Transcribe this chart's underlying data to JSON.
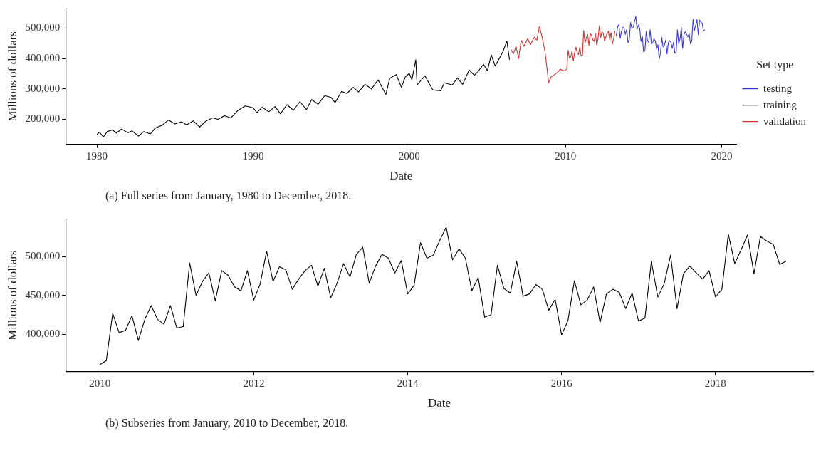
{
  "chart_data": [
    {
      "type": "line",
      "xlabel": "Date",
      "ylabel": "Millions of dollars",
      "legend_title": "Set type",
      "legend": "right",
      "grid": false,
      "marker": "none",
      "line_style": "solid",
      "xlim": [
        "1978-01-01",
        "2020-12-15"
      ],
      "xticks": [
        "1980",
        "1990",
        "2000",
        "2010",
        "2020"
      ],
      "ylim": [
        118000,
        564000
      ],
      "yticks": [
        {
          "value": 200000,
          "label": "200,000"
        },
        {
          "value": 300000,
          "label": "300,000"
        },
        {
          "value": 400000,
          "label": "400,000"
        },
        {
          "value": 500000,
          "label": "500,000"
        }
      ],
      "annotations": [
        "(a) Full series from January, 1980 to December, 2018."
      ],
      "series": [
        {
          "name": "testing",
          "color": "#3a3ad6",
          "x": [
            "2013-04",
            "2013-05",
            "2013-06",
            "2013-07",
            "2013-08",
            "2013-09",
            "2013-10",
            "2013-11",
            "2013-12",
            "2014-01",
            "2014-02",
            "2014-03",
            "2014-04",
            "2014-05",
            "2014-06",
            "2014-07",
            "2014-08",
            "2014-09",
            "2014-10",
            "2014-11",
            "2014-12",
            "2015-01",
            "2015-02",
            "2015-03",
            "2015-04",
            "2015-05",
            "2015-06",
            "2015-07",
            "2015-08",
            "2015-09",
            "2015-10",
            "2015-11",
            "2015-12",
            "2016-01",
            "2016-02",
            "2016-03",
            "2016-04",
            "2016-05",
            "2016-06",
            "2016-07",
            "2016-08",
            "2016-09",
            "2016-10",
            "2016-11",
            "2016-12",
            "2017-01",
            "2017-02",
            "2017-03",
            "2017-04",
            "2017-05",
            "2017-06",
            "2017-07",
            "2017-08",
            "2017-09",
            "2017-10",
            "2017-11",
            "2017-12",
            "2018-01",
            "2018-02",
            "2018-03",
            "2018-04",
            "2018-05",
            "2018-06",
            "2018-07",
            "2018-08",
            "2018-09",
            "2018-10",
            "2018-11",
            "2018-12"
          ],
          "values": [
            474000,
            503000,
            512000,
            466000,
            488000,
            503000,
            498000,
            479000,
            495000,
            452000,
            463000,
            518000,
            498000,
            502000,
            521000,
            538000,
            496000,
            510000,
            498000,
            456000,
            473000,
            422000,
            425000,
            489000,
            459000,
            453000,
            494000,
            449000,
            452000,
            464000,
            458000,
            431000,
            445000,
            399000,
            418000,
            469000,
            438000,
            444000,
            461000,
            415000,
            452000,
            458000,
            454000,
            433000,
            453000,
            417000,
            421000,
            494000,
            448000,
            465000,
            502000,
            433000,
            478000,
            488000,
            479000,
            471000,
            482000,
            448000,
            458000,
            529000,
            491000,
            509000,
            528000,
            478000,
            526000,
            520000,
            516000,
            490000,
            494000
          ]
        },
        {
          "name": "training",
          "color": "#000000",
          "x": [
            "1980-01",
            "1980-03",
            "1980-06",
            "1980-09",
            "1981-01",
            "1981-04",
            "1981-08",
            "1982-01",
            "1982-04",
            "1982-09",
            "1983-01",
            "1983-06",
            "1983-10",
            "1984-03",
            "1984-08",
            "1985-01",
            "1985-06",
            "1985-10",
            "1986-03",
            "1986-08",
            "1987-01",
            "1987-06",
            "1987-10",
            "1988-03",
            "1988-08",
            "1989-01",
            "1989-07",
            "1990-01",
            "1990-04",
            "1990-08",
            "1991-01",
            "1991-06",
            "1991-10",
            "1992-03",
            "1992-08",
            "1993-01",
            "1993-06",
            "1993-10",
            "1994-03",
            "1994-08",
            "1995-01",
            "1995-04",
            "1995-09",
            "1996-01",
            "1996-06",
            "1996-10",
            "1997-03",
            "1997-08",
            "1998-01",
            "1998-07",
            "1998-10",
            "1999-03",
            "1999-07",
            "1999-10",
            "2000-01",
            "2000-03",
            "2000-06",
            "2000-07",
            "2001-01",
            "2001-07",
            "2002-01",
            "2002-04",
            "2002-10",
            "2003-02",
            "2003-06",
            "2003-11",
            "2004-03",
            "2004-06",
            "2004-10",
            "2005-01",
            "2005-04",
            "2005-07",
            "2006-01",
            "2006-04",
            "2006-06"
          ],
          "values": [
            150000,
            158000,
            142000,
            160000,
            165000,
            155000,
            168000,
            156000,
            162000,
            145000,
            160000,
            152000,
            172000,
            180000,
            198000,
            185000,
            192000,
            182000,
            195000,
            175000,
            195000,
            205000,
            200000,
            212000,
            205000,
            228000,
            244000,
            238000,
            222000,
            240000,
            225000,
            242000,
            218000,
            248000,
            230000,
            258000,
            232000,
            265000,
            250000,
            278000,
            272000,
            255000,
            292000,
            285000,
            305000,
            290000,
            315000,
            300000,
            330000,
            282000,
            335000,
            347000,
            305000,
            340000,
            351000,
            330000,
            396000,
            313000,
            343000,
            297000,
            294000,
            320000,
            313000,
            336000,
            315000,
            362000,
            345000,
            358000,
            381000,
            360000,
            412000,
            375000,
            423000,
            457000,
            396000
          ]
        },
        {
          "name": "validation",
          "color": "#d73030",
          "x": [
            "2006-07",
            "2006-09",
            "2006-11",
            "2007-01",
            "2007-03",
            "2007-05",
            "2007-08",
            "2007-10",
            "2008-01",
            "2008-03",
            "2008-05",
            "2008-07",
            "2008-09",
            "2008-11",
            "2008-12",
            "2009-02",
            "2009-04",
            "2009-07",
            "2009-09",
            "2009-11",
            "2010-01",
            "2010-02",
            "2010-03",
            "2010-04",
            "2010-05",
            "2010-06",
            "2010-07",
            "2010-08",
            "2010-09",
            "2010-10",
            "2010-11",
            "2010-12",
            "2011-01",
            "2011-02",
            "2011-03",
            "2011-04",
            "2011-05",
            "2011-06",
            "2011-07",
            "2011-08",
            "2011-09",
            "2011-10",
            "2011-11",
            "2011-12",
            "2012-01",
            "2012-02",
            "2012-03",
            "2012-04",
            "2012-05",
            "2012-06",
            "2012-07",
            "2012-08",
            "2012-09",
            "2012-10",
            "2012-11",
            "2012-12",
            "2013-01",
            "2013-02",
            "2013-03"
          ],
          "values": [
            430000,
            415000,
            440000,
            400000,
            460000,
            440000,
            465000,
            445000,
            470000,
            460000,
            505000,
            470000,
            430000,
            360000,
            320000,
            340000,
            345000,
            355000,
            365000,
            360000,
            361000,
            366000,
            427000,
            402000,
            405000,
            424000,
            392000,
            419000,
            437000,
            419000,
            413000,
            437000,
            408000,
            410000,
            492000,
            450000,
            468000,
            479000,
            443000,
            482000,
            476000,
            461000,
            456000,
            482000,
            444000,
            465000,
            507000,
            468000,
            487000,
            483000,
            458000,
            471000,
            482000,
            489000,
            462000,
            485000,
            447000,
            466000,
            491000
          ]
        }
      ]
    },
    {
      "type": "line",
      "xlabel": "Date",
      "ylabel": "Millions of dollars",
      "grid": false,
      "marker": "none",
      "line_style": "solid",
      "xlim": [
        "2009-07-21",
        "2019-04-08"
      ],
      "xticks": [
        "2010",
        "2012",
        "2014",
        "2016",
        "2018"
      ],
      "ylim": [
        352000,
        548000
      ],
      "yticks": [
        {
          "value": 400000,
          "label": "400,000"
        },
        {
          "value": 450000,
          "label": "450,000"
        },
        {
          "value": 500000,
          "label": "500,000"
        }
      ],
      "annotations": [
        "(b) Subseries from January, 2010 to December, 2018."
      ],
      "x": [
        "2010-01",
        "2010-02",
        "2010-03",
        "2010-04",
        "2010-05",
        "2010-06",
        "2010-07",
        "2010-08",
        "2010-09",
        "2010-10",
        "2010-11",
        "2010-12",
        "2011-01",
        "2011-02",
        "2011-03",
        "2011-04",
        "2011-05",
        "2011-06",
        "2011-07",
        "2011-08",
        "2011-09",
        "2011-10",
        "2011-11",
        "2011-12",
        "2012-01",
        "2012-02",
        "2012-03",
        "2012-04",
        "2012-05",
        "2012-06",
        "2012-07",
        "2012-08",
        "2012-09",
        "2012-10",
        "2012-11",
        "2012-12",
        "2013-01",
        "2013-02",
        "2013-03",
        "2013-04",
        "2013-05",
        "2013-06",
        "2013-07",
        "2013-08",
        "2013-09",
        "2013-10",
        "2013-11",
        "2013-12",
        "2014-01",
        "2014-02",
        "2014-03",
        "2014-04",
        "2014-05",
        "2014-06",
        "2014-07",
        "2014-08",
        "2014-09",
        "2014-10",
        "2014-11",
        "2014-12",
        "2015-01",
        "2015-02",
        "2015-03",
        "2015-04",
        "2015-05",
        "2015-06",
        "2015-07",
        "2015-08",
        "2015-09",
        "2015-10",
        "2015-11",
        "2015-12",
        "2016-01",
        "2016-02",
        "2016-03",
        "2016-04",
        "2016-05",
        "2016-06",
        "2016-07",
        "2016-08",
        "2016-09",
        "2016-10",
        "2016-11",
        "2016-12",
        "2017-01",
        "2017-02",
        "2017-03",
        "2017-04",
        "2017-05",
        "2017-06",
        "2017-07",
        "2017-08",
        "2017-09",
        "2017-10",
        "2017-11",
        "2017-12",
        "2018-01",
        "2018-02",
        "2018-03",
        "2018-04",
        "2018-05",
        "2018-06",
        "2018-07",
        "2018-08",
        "2018-09",
        "2018-10",
        "2018-11",
        "2018-12"
      ],
      "series": [
        {
          "color": "#000000",
          "values": [
            361000,
            366000,
            427000,
            402000,
            405000,
            424000,
            392000,
            419000,
            437000,
            419000,
            413000,
            437000,
            408000,
            410000,
            492000,
            450000,
            468000,
            479000,
            443000,
            482000,
            476000,
            461000,
            456000,
            482000,
            444000,
            465000,
            507000,
            468000,
            487000,
            483000,
            458000,
            471000,
            482000,
            489000,
            462000,
            485000,
            447000,
            466000,
            491000,
            474000,
            503000,
            512000,
            466000,
            488000,
            503000,
            498000,
            479000,
            495000,
            452000,
            463000,
            518000,
            498000,
            502000,
            521000,
            538000,
            496000,
            510000,
            498000,
            456000,
            473000,
            422000,
            425000,
            489000,
            459000,
            453000,
            494000,
            449000,
            452000,
            464000,
            458000,
            431000,
            445000,
            399000,
            418000,
            469000,
            438000,
            444000,
            461000,
            415000,
            452000,
            458000,
            454000,
            433000,
            453000,
            417000,
            421000,
            494000,
            448000,
            465000,
            502000,
            433000,
            478000,
            488000,
            479000,
            471000,
            482000,
            448000,
            458000,
            529000,
            491000,
            509000,
            528000,
            478000,
            526000,
            520000,
            516000,
            490000,
            494000
          ]
        }
      ]
    }
  ]
}
